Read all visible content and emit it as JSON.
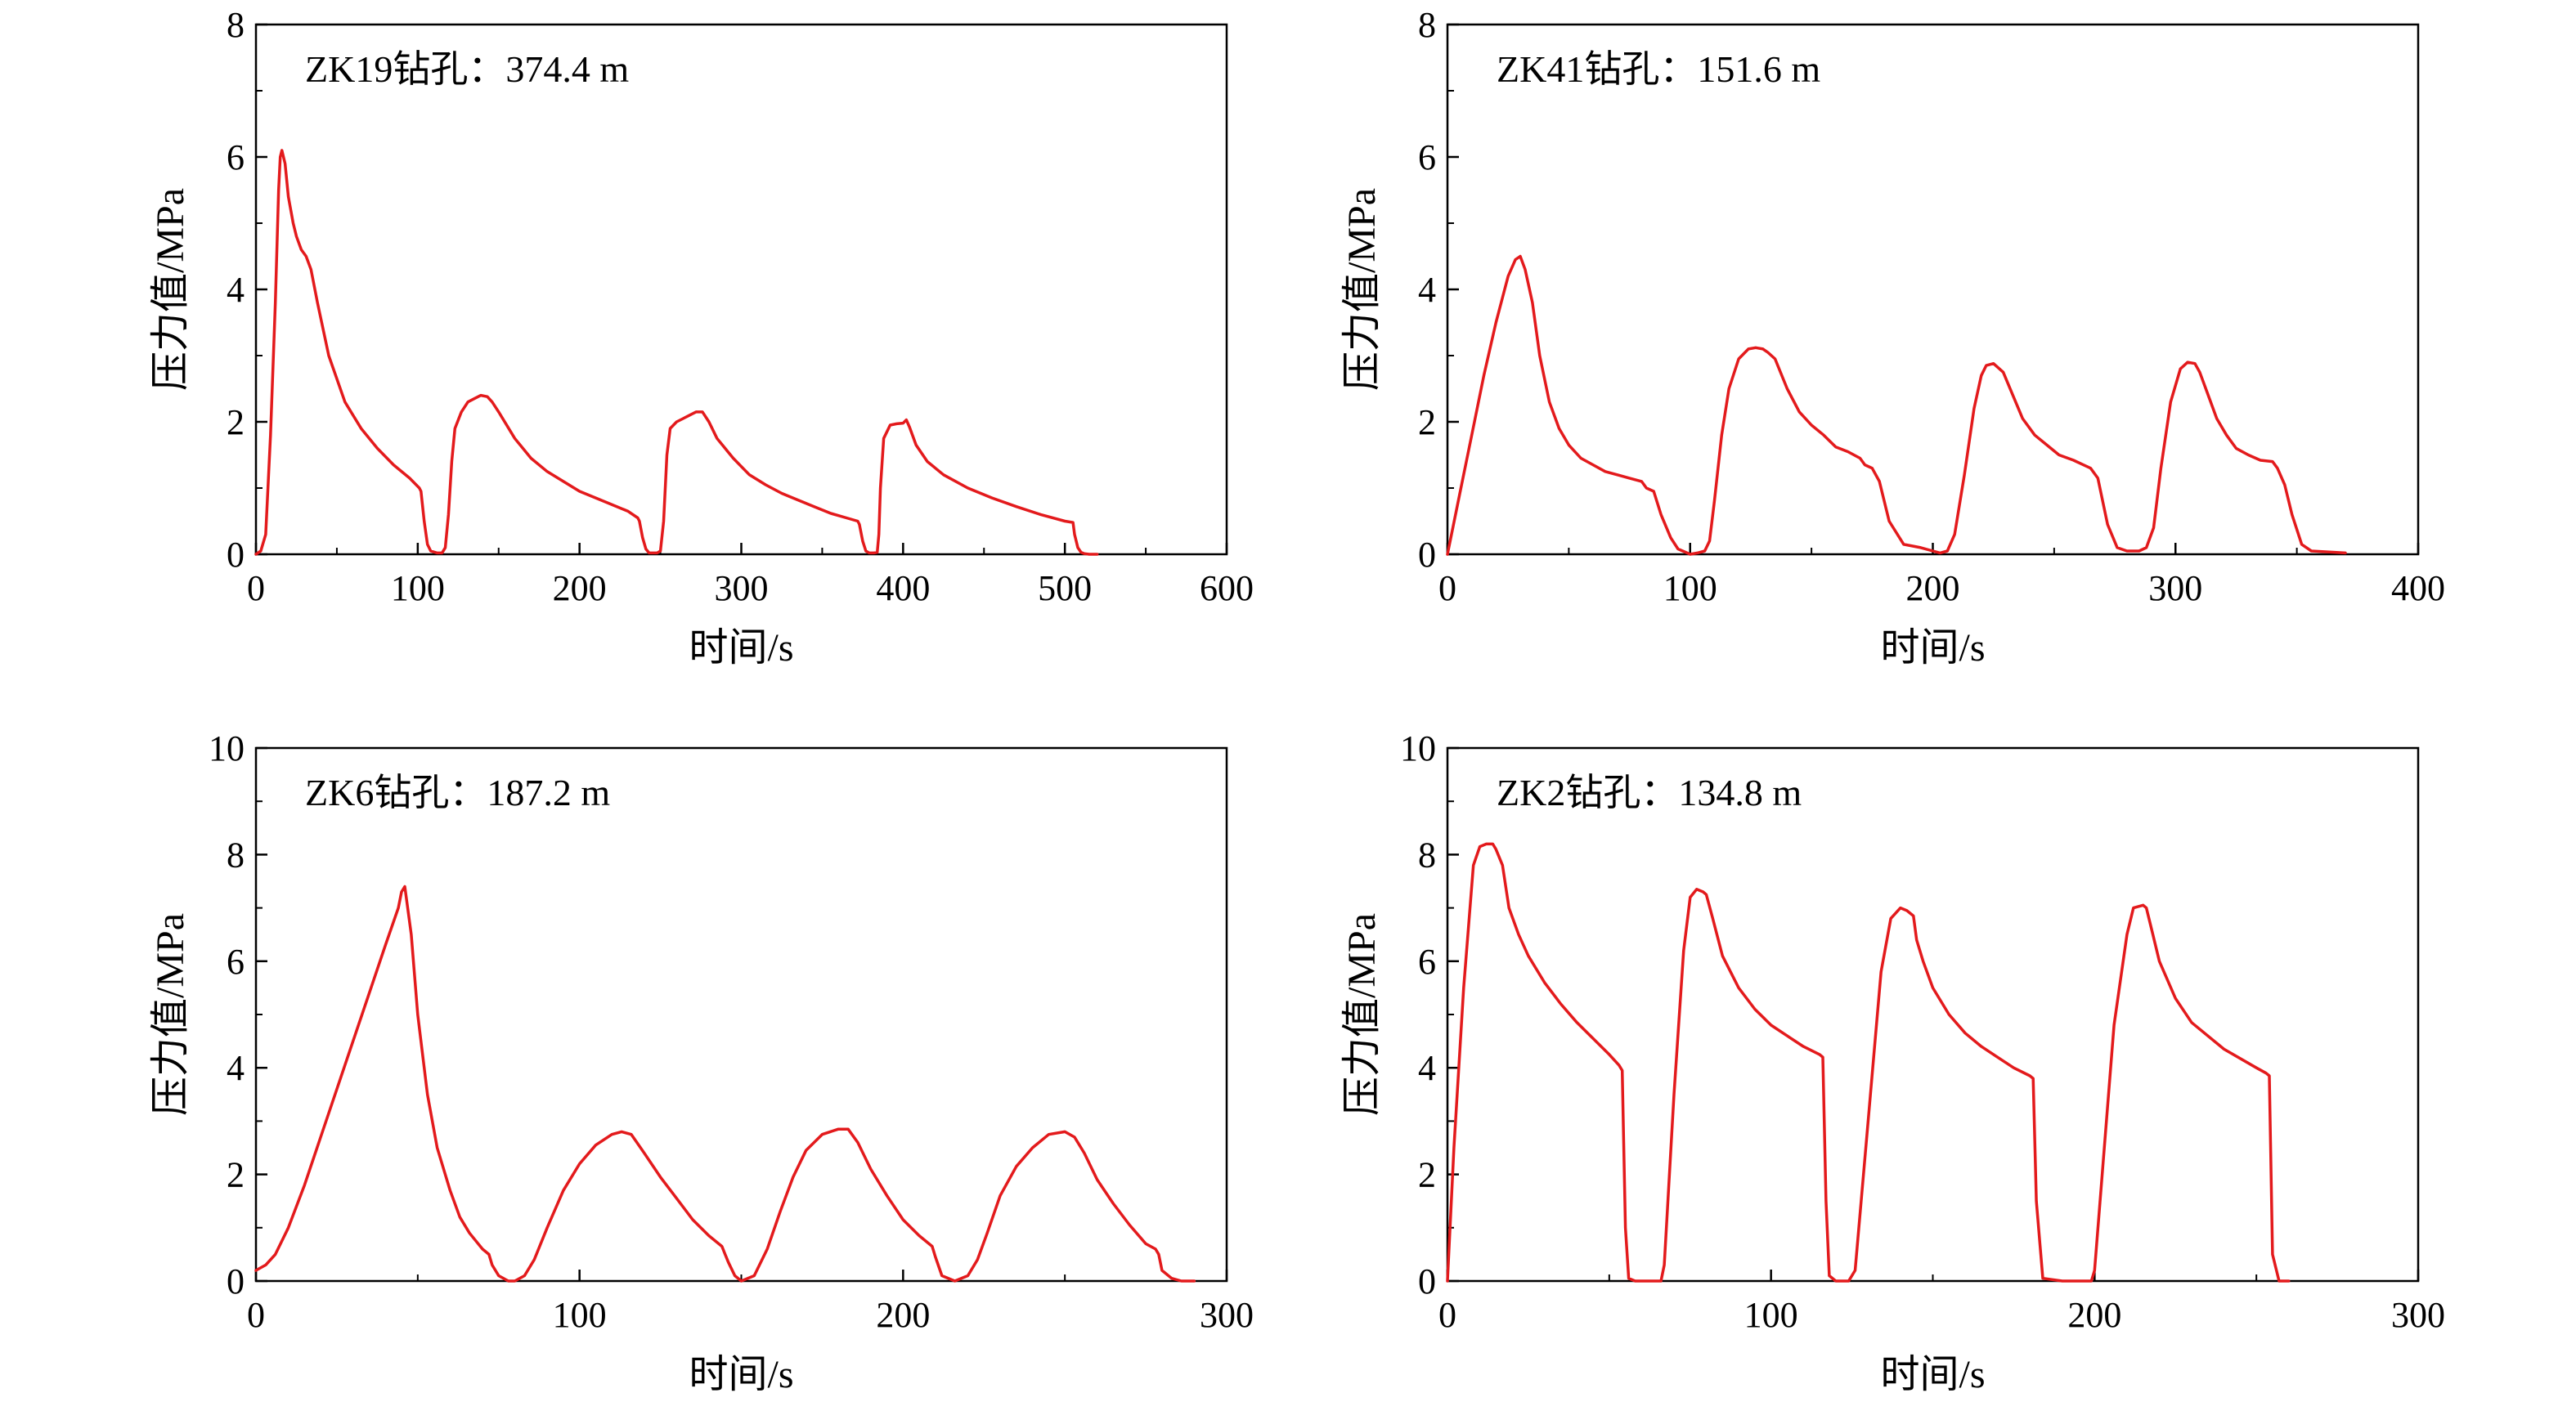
{
  "chart_data": [
    {
      "type": "line",
      "title": "ZK19钻孔：374.4 m",
      "xlabel": "时间/s",
      "ylabel": "压力值/MPa",
      "xlim": [
        0,
        600
      ],
      "ylim": [
        0,
        8
      ],
      "xticks": [
        0,
        100,
        200,
        300,
        400,
        500,
        600
      ],
      "yticks": [
        0,
        2,
        4,
        6,
        8
      ],
      "grid": false,
      "color": "#e31a1c",
      "series": [
        {
          "name": "压力值",
          "x": [
            0,
            3,
            6,
            9,
            12,
            14,
            15,
            16,
            18,
            20,
            23,
            25,
            28,
            31,
            34,
            38,
            45,
            55,
            65,
            75,
            85,
            95,
            101,
            102,
            104,
            106,
            108,
            112,
            115,
            117,
            119,
            121,
            123,
            127,
            131,
            135,
            139,
            143,
            146,
            150,
            160,
            170,
            180,
            190,
            200,
            210,
            220,
            230,
            236,
            237,
            239,
            241,
            243,
            246,
            248,
            250,
            252,
            254,
            256,
            260,
            264,
            268,
            272,
            276,
            280,
            285,
            295,
            305,
            315,
            325,
            335,
            345,
            355,
            365,
            372,
            373,
            375,
            377,
            379,
            382,
            384,
            385,
            386,
            388,
            392,
            396,
            400,
            402,
            404,
            408,
            415,
            425,
            440,
            455,
            470,
            485,
            500,
            505,
            506,
            508,
            510,
            512,
            515,
            520
          ],
          "y": [
            0,
            0.05,
            0.3,
            1.8,
            3.8,
            5.5,
            6.0,
            6.1,
            5.9,
            5.4,
            5.0,
            4.8,
            4.6,
            4.5,
            4.3,
            3.8,
            3.0,
            2.3,
            1.9,
            1.6,
            1.35,
            1.15,
            1.0,
            0.95,
            0.5,
            0.15,
            0.05,
            0.02,
            0.02,
            0.1,
            0.6,
            1.4,
            1.9,
            2.15,
            2.3,
            2.35,
            2.4,
            2.38,
            2.3,
            2.15,
            1.75,
            1.45,
            1.25,
            1.1,
            0.95,
            0.85,
            0.75,
            0.65,
            0.55,
            0.5,
            0.25,
            0.08,
            0.02,
            0.02,
            0.02,
            0.05,
            0.5,
            1.5,
            1.9,
            2.0,
            2.05,
            2.1,
            2.15,
            2.15,
            2.0,
            1.75,
            1.45,
            1.2,
            1.05,
            0.92,
            0.82,
            0.72,
            0.62,
            0.55,
            0.5,
            0.45,
            0.2,
            0.05,
            0.02,
            0.02,
            0.03,
            0.3,
            1.0,
            1.75,
            1.95,
            1.97,
            1.98,
            2.03,
            1.92,
            1.65,
            1.4,
            1.2,
            1.0,
            0.85,
            0.72,
            0.6,
            0.5,
            0.48,
            0.3,
            0.1,
            0.03,
            0.01,
            0.0,
            0.0
          ]
        }
      ]
    },
    {
      "type": "line",
      "title": "ZK41钻孔：151.6 m",
      "xlabel": "时间/s",
      "ylabel": "压力值/MPa",
      "xlim": [
        0,
        400
      ],
      "ylim": [
        0,
        8
      ],
      "xticks": [
        0,
        100,
        200,
        300,
        400
      ],
      "yticks": [
        0,
        2,
        4,
        6,
        8
      ],
      "grid": false,
      "color": "#e31a1c",
      "series": [
        {
          "name": "压力值",
          "x": [
            0,
            5,
            10,
            15,
            20,
            25,
            28,
            30,
            32,
            35,
            38,
            42,
            46,
            50,
            55,
            60,
            65,
            70,
            75,
            80,
            82,
            85,
            88,
            92,
            95,
            100,
            103,
            106,
            108,
            110,
            113,
            116,
            120,
            124,
            127,
            130,
            132,
            135,
            140,
            145,
            150,
            155,
            160,
            165,
            170,
            172,
            175,
            178,
            182,
            188,
            195,
            200,
            203,
            206,
            209,
            213,
            217,
            220,
            222,
            225,
            229,
            233,
            237,
            242,
            247,
            252,
            258,
            262,
            265,
            268,
            272,
            276,
            280,
            285,
            288,
            291,
            294,
            298,
            302,
            305,
            308,
            310,
            313,
            317,
            321,
            325,
            330,
            335,
            340,
            342,
            345,
            348,
            352,
            356,
            370
          ],
          "y": [
            0,
            0.9,
            1.8,
            2.7,
            3.5,
            4.2,
            4.45,
            4.5,
            4.3,
            3.8,
            3.0,
            2.3,
            1.9,
            1.65,
            1.45,
            1.35,
            1.25,
            1.2,
            1.15,
            1.1,
            1.0,
            0.95,
            0.6,
            0.25,
            0.08,
            0.0,
            0.02,
            0.05,
            0.2,
            0.8,
            1.8,
            2.5,
            2.95,
            3.1,
            3.12,
            3.1,
            3.05,
            2.95,
            2.5,
            2.15,
            1.95,
            1.8,
            1.62,
            1.55,
            1.45,
            1.35,
            1.3,
            1.1,
            0.5,
            0.15,
            0.1,
            0.05,
            0.02,
            0.05,
            0.3,
            1.2,
            2.2,
            2.7,
            2.85,
            2.88,
            2.75,
            2.4,
            2.05,
            1.8,
            1.65,
            1.5,
            1.42,
            1.35,
            1.3,
            1.15,
            0.45,
            0.1,
            0.05,
            0.05,
            0.1,
            0.4,
            1.3,
            2.3,
            2.8,
            2.9,
            2.88,
            2.75,
            2.45,
            2.05,
            1.8,
            1.6,
            1.5,
            1.42,
            1.4,
            1.3,
            1.05,
            0.6,
            0.15,
            0.05,
            0.02
          ]
        }
      ]
    },
    {
      "type": "line",
      "title": "ZK6钻孔：187.2 m",
      "xlabel": "时间/s",
      "ylabel": "压力值/MPa",
      "xlim": [
        0,
        300
      ],
      "ylim": [
        0,
        10
      ],
      "xticks": [
        0,
        100,
        200,
        300
      ],
      "yticks": [
        0,
        2,
        4,
        6,
        8,
        10
      ],
      "grid": false,
      "color": "#e31a1c",
      "series": [
        {
          "name": "压力值",
          "x": [
            0,
            3,
            6,
            10,
            15,
            20,
            25,
            30,
            35,
            40,
            44,
            45,
            46,
            48,
            50,
            53,
            56,
            60,
            63,
            66,
            70,
            72,
            73,
            75,
            78,
            80,
            83,
            86,
            90,
            95,
            100,
            105,
            110,
            113,
            116,
            120,
            125,
            130,
            135,
            140,
            144,
            145,
            146,
            148,
            150,
            154,
            158,
            162,
            166,
            170,
            175,
            180,
            183,
            186,
            190,
            195,
            200,
            205,
            208,
            209,
            210,
            212,
            216,
            220,
            223,
            226,
            230,
            235,
            240,
            245,
            250,
            253,
            256,
            260,
            265,
            270,
            275,
            278,
            279,
            280,
            283,
            286,
            290
          ],
          "y": [
            0.2,
            0.3,
            0.5,
            1.0,
            1.8,
            2.7,
            3.6,
            4.5,
            5.4,
            6.3,
            7.0,
            7.3,
            7.4,
            6.5,
            5.0,
            3.5,
            2.5,
            1.7,
            1.2,
            0.9,
            0.6,
            0.5,
            0.3,
            0.1,
            0.0,
            0.0,
            0.1,
            0.4,
            1.0,
            1.7,
            2.2,
            2.55,
            2.75,
            2.8,
            2.75,
            2.4,
            1.95,
            1.55,
            1.15,
            0.85,
            0.65,
            0.5,
            0.35,
            0.1,
            0.0,
            0.1,
            0.6,
            1.3,
            1.95,
            2.45,
            2.75,
            2.85,
            2.85,
            2.6,
            2.1,
            1.6,
            1.15,
            0.85,
            0.7,
            0.65,
            0.45,
            0.1,
            0.0,
            0.1,
            0.4,
            0.9,
            1.6,
            2.15,
            2.5,
            2.75,
            2.8,
            2.7,
            2.4,
            1.9,
            1.45,
            1.05,
            0.7,
            0.6,
            0.5,
            0.2,
            0.05,
            0.0,
            0.0
          ]
        }
      ]
    },
    {
      "type": "line",
      "title": "ZK2钻孔：134.8 m",
      "xlabel": "时间/s",
      "ylabel": "压力值/MPa",
      "xlim": [
        0,
        300
      ],
      "ylim": [
        0,
        10
      ],
      "xticks": [
        0,
        100,
        200,
        300
      ],
      "yticks": [
        0,
        2,
        4,
        6,
        8,
        10
      ],
      "grid": false,
      "color": "#e31a1c",
      "series": [
        {
          "name": "压力值",
          "x": [
            0,
            2,
            5,
            8,
            10,
            12,
            14,
            15,
            17,
            19,
            22,
            25,
            30,
            35,
            40,
            45,
            50,
            53,
            54,
            55,
            56,
            58,
            62,
            66,
            67,
            70,
            73,
            75,
            77,
            79,
            80,
            82,
            85,
            90,
            95,
            100,
            105,
            110,
            115,
            116,
            117,
            118,
            120,
            124,
            126,
            130,
            134,
            137,
            140,
            142,
            144,
            145,
            147,
            150,
            155,
            160,
            165,
            170,
            175,
            180,
            181,
            182,
            184,
            190,
            199,
            200,
            203,
            206,
            210,
            212,
            215,
            216,
            218,
            220,
            225,
            230,
            240,
            250,
            253,
            254,
            255,
            257,
            260
          ],
          "y": [
            0,
            2.5,
            5.5,
            7.8,
            8.15,
            8.2,
            8.2,
            8.1,
            7.8,
            7.0,
            6.5,
            6.1,
            5.6,
            5.2,
            4.85,
            4.55,
            4.25,
            4.05,
            3.95,
            1.0,
            0.05,
            0.0,
            0.0,
            0.0,
            0.3,
            3.5,
            6.2,
            7.2,
            7.35,
            7.3,
            7.25,
            6.8,
            6.1,
            5.5,
            5.1,
            4.8,
            4.6,
            4.4,
            4.25,
            4.2,
            1.5,
            0.1,
            0.0,
            0.0,
            0.2,
            3.0,
            5.8,
            6.8,
            7.0,
            6.95,
            6.85,
            6.4,
            6.0,
            5.5,
            5.0,
            4.65,
            4.4,
            4.2,
            4.0,
            3.85,
            3.8,
            1.5,
            0.05,
            0.0,
            0.0,
            0.2,
            2.5,
            4.8,
            6.5,
            7.0,
            7.05,
            7.0,
            6.5,
            6.0,
            5.3,
            4.85,
            4.35,
            4.0,
            3.9,
            3.85,
            0.5,
            0.0,
            0.0
          ]
        }
      ]
    }
  ]
}
